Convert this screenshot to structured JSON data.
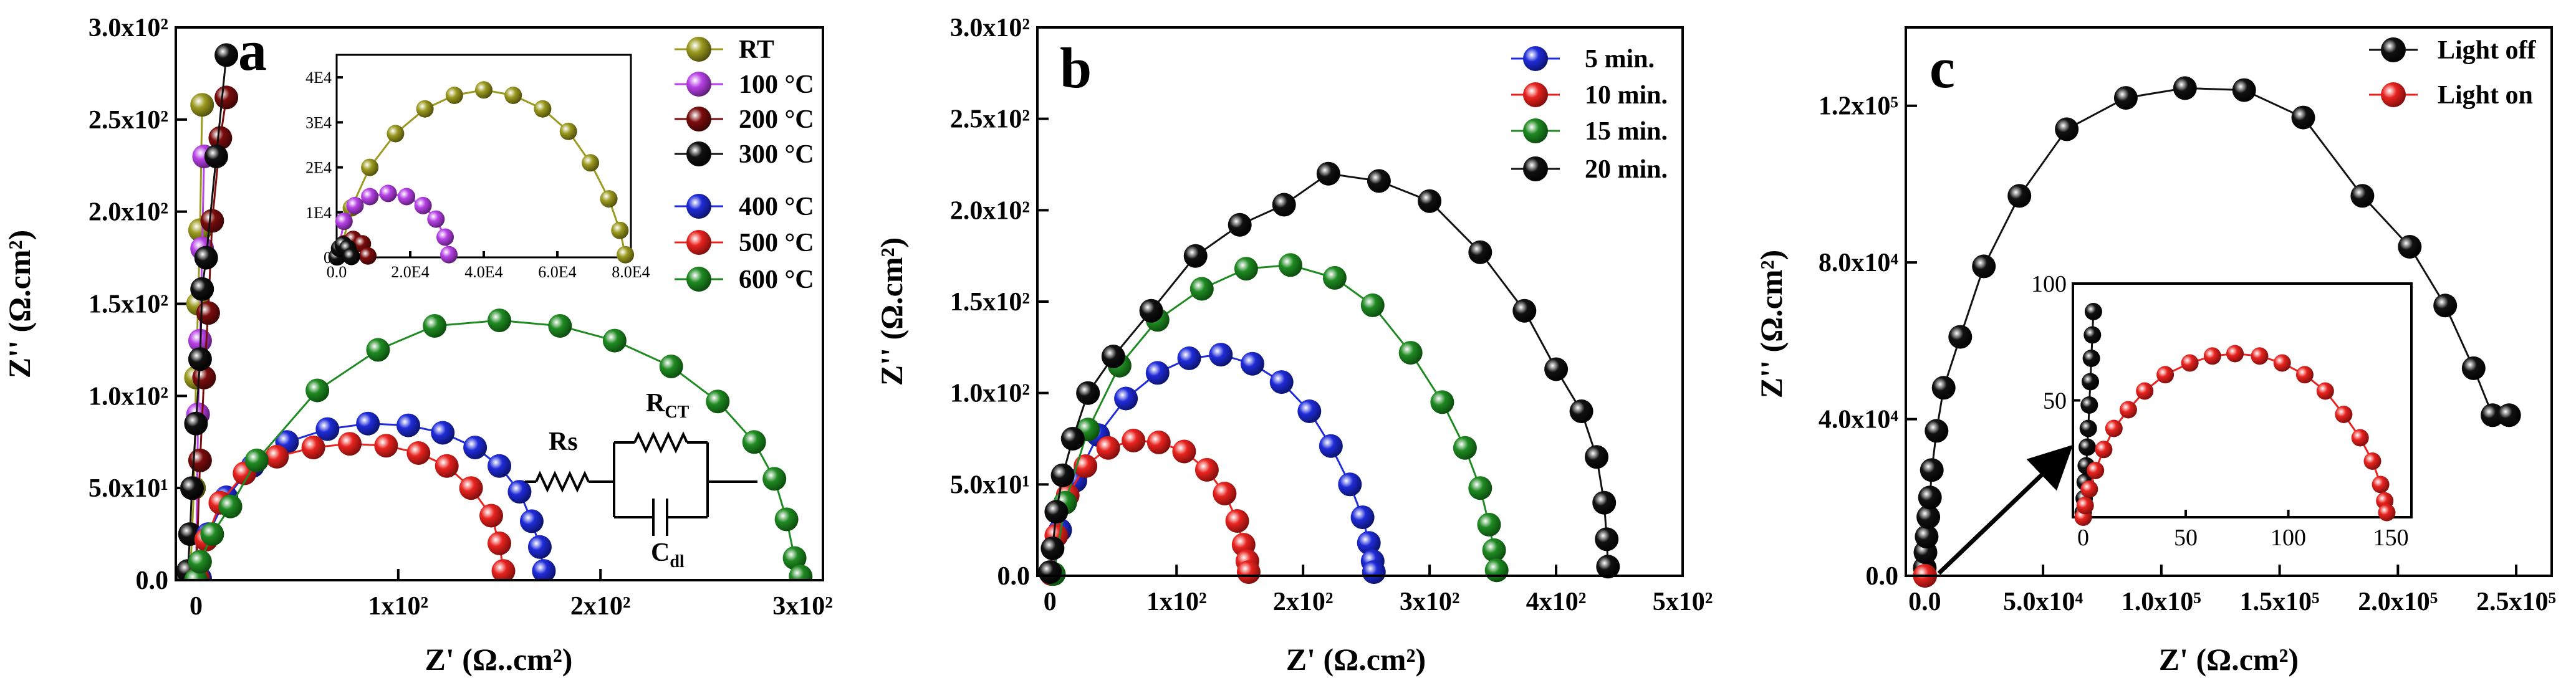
{
  "colors": {
    "RT": "#9b9a1f",
    "100C": "#b742e6",
    "200C": "#7b0c0c",
    "300C": "#111111",
    "400C": "#1f2bd8",
    "500C": "#e8231f",
    "600C": "#1f8a22",
    "5min": "#1f2bd8",
    "10min": "#e8231f",
    "15min": "#1f8a22",
    "20min": "#111111",
    "light_off": "#111111",
    "light_on": "#e8231f"
  },
  "chart_data": [
    {
      "panel": "a",
      "type": "scatter",
      "xlabel": "Z' (Ω..cm²)",
      "ylabel": "Z'' (Ω.cm²)",
      "xlim": [
        -10,
        310
      ],
      "ylim": [
        0,
        300
      ],
      "x_ticks": [
        "0",
        "1x10²",
        "2x10²",
        "3x10²"
      ],
      "y_ticks": [
        "0.0",
        "5.0x10¹",
        "1.0x10²",
        "1.5x10²",
        "2.0x10²",
        "2.5x10²",
        "3.0x10²"
      ],
      "legend": [
        "RT",
        "100 °C",
        "200 °C",
        "300 °C",
        "400 °C",
        "500 °C",
        "600 °C"
      ],
      "circuit": {
        "rs": "Rs",
        "rct_main": "R",
        "rct_sub": "CT",
        "cdl_main": "C",
        "cdl_sub": "dl"
      },
      "series": [
        {
          "name": "RT",
          "color_key": "RT",
          "x": [
            -3,
            -1,
            0,
            1,
            2,
            3
          ],
          "y": [
            0,
            50,
            110,
            150,
            190,
            258
          ]
        },
        {
          "name": "100 °C",
          "color_key": "100C",
          "x": [
            0,
            1,
            2,
            3,
            4
          ],
          "y": [
            0,
            90,
            130,
            180,
            230
          ]
        },
        {
          "name": "200 °C",
          "color_key": "200C",
          "x": [
            0,
            2,
            4,
            6,
            8,
            12,
            15
          ],
          "y": [
            0,
            65,
            110,
            145,
            195,
            240,
            262
          ]
        },
        {
          "name": "300 °C",
          "color_key": "300C",
          "x": [
            -5,
            -4,
            -3,
            -2,
            0,
            2,
            3,
            5,
            10,
            15
          ],
          "y": [
            0,
            5,
            25,
            50,
            85,
            120,
            158,
            175,
            230,
            285
          ]
        },
        {
          "name": "400 °C",
          "color_key": "400C",
          "x": [
            2,
            6,
            15,
            28,
            45,
            65,
            85,
            105,
            122,
            138,
            150,
            160,
            166,
            170,
            172
          ],
          "y": [
            1,
            25,
            45,
            62,
            75,
            82,
            85,
            84,
            80,
            72,
            62,
            48,
            32,
            18,
            5
          ]
        },
        {
          "name": "500 °C",
          "color_key": "500C",
          "x": [
            1,
            5,
            12,
            24,
            40,
            58,
            76,
            94,
            110,
            124,
            136,
            146,
            150,
            152
          ],
          "y": [
            1,
            22,
            42,
            58,
            67,
            72,
            74,
            73,
            69,
            62,
            50,
            35,
            20,
            5
          ]
        },
        {
          "name": "600 °C",
          "color_key": "600C",
          "x": [
            0,
            2,
            8,
            17,
            30,
            60,
            90,
            118,
            150,
            180,
            207,
            235,
            258,
            276,
            286,
            292,
            296,
            299
          ],
          "y": [
            0,
            10,
            25,
            40,
            65,
            103,
            125,
            138,
            141,
            138,
            130,
            116,
            97,
            75,
            55,
            33,
            12,
            2
          ]
        }
      ],
      "inset": {
        "xlim": [
          0,
          80000
        ],
        "ylim": [
          0,
          45000
        ],
        "x_ticks": [
          "0.0",
          "2.0E4",
          "4.0E4",
          "6.0E4",
          "8.0E4"
        ],
        "y_ticks": [
          "0",
          "1E4",
          "2E4",
          "3E4",
          "4E4"
        ],
        "series": [
          {
            "name": "RT",
            "color_key": "RT",
            "x": [
              1000,
              4000,
              9000,
              16000,
              24000,
              32000,
              40000,
              48000,
              56000,
              63000,
              69000,
              74000,
              77000,
              78500
            ],
            "y": [
              1000,
              11000,
              20000,
              27500,
              33000,
              36000,
              37200,
              36000,
              33000,
              28000,
              21000,
              13000,
              6000,
              600
            ]
          },
          {
            "name": "100 °C",
            "color_key": "100C",
            "x": [
              200,
              2000,
              5000,
              9000,
              14000,
              19000,
              23500,
              27000,
              29500,
              30500
            ],
            "y": [
              200,
              8000,
              11500,
              13500,
              14200,
              13500,
              11500,
              8500,
              4500,
              600
            ]
          },
          {
            "name": "200 °C",
            "color_key": "200C",
            "x": [
              200,
              2000,
              4500,
              7000,
              8500
            ],
            "y": [
              200,
              3000,
              4000,
              3000,
              300
            ]
          },
          {
            "name": "300 °C",
            "color_key": "300C",
            "x": [
              100,
              800,
              1800,
              3000,
              4000
            ],
            "y": [
              100,
              2000,
              2800,
              2000,
              200
            ]
          }
        ]
      }
    },
    {
      "panel": "b",
      "type": "scatter",
      "xlabel": "Z' (Ω.cm²)",
      "ylabel": "Z'' (Ω.cm²)",
      "xlim": [
        -10,
        500
      ],
      "ylim": [
        0,
        300
      ],
      "x_ticks": [
        "0",
        "1x10²",
        "2x10²",
        "3x10²",
        "4x10²",
        "5x10²"
      ],
      "y_ticks": [
        "0.0",
        "5.0x10¹",
        "1.0x10²",
        "1.5x10²",
        "2.0x10²",
        "2.5x10²",
        "3.0x10²"
      ],
      "legend": [
        "5 min.",
        "10 min.",
        "15 min.",
        "20 min."
      ],
      "series": [
        {
          "name": "5 min.",
          "color_key": "5min",
          "x": [
            2,
            8,
            20,
            38,
            60,
            85,
            110,
            135,
            160,
            183,
            205,
            222,
            237,
            247,
            252,
            255,
            256
          ],
          "y": [
            1,
            25,
            52,
            77,
            97,
            111,
            119,
            121,
            116,
            106,
            90,
            71,
            50,
            32,
            18,
            8,
            2
          ]
        },
        {
          "name": "10 min.",
          "color_key": "10min",
          "x": [
            1,
            5,
            14,
            28,
            46,
            66,
            86,
            106,
            124,
            138,
            148,
            153,
            156,
            157
          ],
          "y": [
            1,
            22,
            44,
            60,
            70,
            74,
            73,
            68,
            58,
            45,
            30,
            17,
            8,
            2
          ]
        },
        {
          "name": "15 min.",
          "color_key": "15min",
          "x": [
            3,
            12,
            30,
            55,
            85,
            120,
            155,
            190,
            225,
            255,
            285,
            310,
            328,
            340,
            347,
            351,
            353
          ],
          "y": [
            1,
            40,
            80,
            115,
            140,
            157,
            168,
            170,
            163,
            148,
            122,
            95,
            70,
            48,
            28,
            14,
            3
          ]
        },
        {
          "name": "20 min.",
          "color_key": "20min",
          "x": [
            0,
            2,
            5,
            10,
            18,
            30,
            50,
            80,
            115,
            150,
            185,
            220,
            260,
            300,
            340,
            375,
            400,
            420,
            432,
            438,
            440,
            441
          ],
          "y": [
            2,
            15,
            35,
            55,
            75,
            100,
            120,
            145,
            175,
            192,
            203,
            220,
            216,
            205,
            177,
            145,
            113,
            90,
            65,
            40,
            20,
            5
          ]
        }
      ]
    },
    {
      "panel": "c",
      "type": "scatter",
      "xlabel": "Z' (Ω.cm²)",
      "ylabel": "Z'' (Ω.cm²)",
      "xlim": [
        -8000,
        265000
      ],
      "ylim": [
        0,
        140000
      ],
      "x_ticks": [
        "0.0",
        "5.0x10⁴",
        "1.0x10⁵",
        "1.5x10⁵",
        "2.0x10⁵",
        "2.5x10⁵"
      ],
      "y_ticks": [
        "0.0",
        "4.0x10⁴",
        "8.0x10⁴",
        "1.2x10⁵"
      ],
      "legend": [
        "Light off",
        "Light on"
      ],
      "series": [
        {
          "name": "Light off",
          "color_key": "light_off",
          "x": [
            0,
            300,
            800,
            1500,
            2200,
            3000,
            5000,
            8000,
            15000,
            25000,
            40000,
            60000,
            85000,
            110000,
            135000,
            160000,
            185000,
            205000,
            220000,
            232000,
            240000,
            247000
          ],
          "y": [
            2000,
            6000,
            10000,
            15000,
            20000,
            27000,
            37000,
            48000,
            61000,
            79000,
            97000,
            114000,
            122000,
            124500,
            124000,
            117000,
            97000,
            84000,
            69000,
            53000,
            41000,
            41000
          ]
        },
        {
          "name": "Light on",
          "color_key": "light_on",
          "x": [
            0,
            200
          ],
          "y": [
            0,
            0
          ]
        }
      ],
      "inset": {
        "xlim": [
          -5,
          160
        ],
        "ylim": [
          0,
          100
        ],
        "x_ticks": [
          "0",
          "50",
          "100",
          "150"
        ],
        "y_ticks": [
          "50",
          "100"
        ],
        "series": [
          {
            "name": "Light off",
            "color_key": "light_off",
            "x": [
              0,
              0.5,
              1,
              1.5,
              2,
              2.5,
              3,
              3.5,
              4,
              4.5,
              5
            ],
            "y": [
              2,
              8,
              15,
              22,
              30,
              38,
              48,
              58,
              68,
              78,
              88
            ]
          },
          {
            "name": "Light on",
            "color_key": "light_on",
            "x": [
              0,
              1,
              3,
              6,
              10,
              15,
              22,
              30,
              40,
              52,
              63,
              74,
              86,
              97,
              108,
              118,
              127,
              135,
              141,
              145,
              147,
              148
            ],
            "y": [
              0,
              5,
              12,
              20,
              29,
              38,
              46,
              54,
              61,
              66,
              69,
              70,
              69,
              66,
              61,
              54,
              44,
              34,
              24,
              14,
              7,
              2
            ]
          }
        ]
      }
    }
  ]
}
